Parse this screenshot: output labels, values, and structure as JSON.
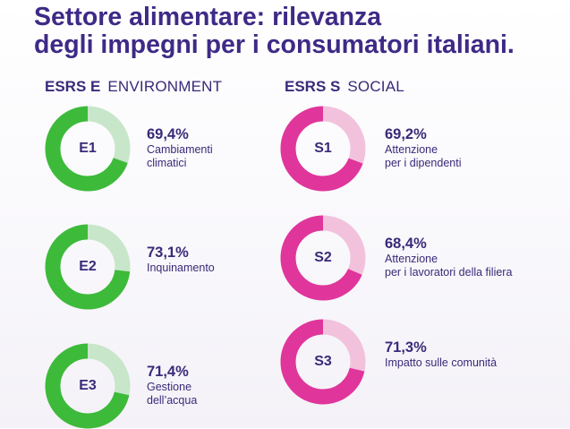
{
  "title": {
    "line1": "Settore alimentare: rilevanza",
    "line2": "degli impegni per i consumatori italiani."
  },
  "sections": {
    "environment": {
      "code": "ESRS E",
      "name": "ENVIRONMENT",
      "ring_color": "#3dba3a",
      "track_color": "#c8e6c9"
    },
    "social": {
      "code": "ESRS S",
      "name": "SOCIAL",
      "ring_color": "#e0359b",
      "track_color": "#f2c2dd"
    }
  },
  "chart_data": {
    "type": "donut",
    "unit": "%",
    "max": 100,
    "items": [
      {
        "code": "E1",
        "group": "environment",
        "value": 69.4,
        "value_label": "69,4%",
        "label_lines": [
          "Cambiamenti",
          "climatici"
        ]
      },
      {
        "code": "E2",
        "group": "environment",
        "value": 73.1,
        "value_label": "73,1%",
        "label_lines": [
          "Inquinamento"
        ]
      },
      {
        "code": "E3",
        "group": "environment",
        "value": 71.4,
        "value_label": "71,4%",
        "label_lines": [
          "Gestione",
          "dell’acqua"
        ]
      },
      {
        "code": "S1",
        "group": "social",
        "value": 69.2,
        "value_label": "69,2%",
        "label_lines": [
          "Attenzione",
          "per i dipendenti"
        ]
      },
      {
        "code": "S2",
        "group": "social",
        "value": 68.4,
        "value_label": "68,4%",
        "label_lines": [
          "Attenzione",
          "per i lavoratori della filiera"
        ]
      },
      {
        "code": "S3",
        "group": "social",
        "value": 71.3,
        "value_label": "71,3%",
        "label_lines": [
          "Impatto sulle comunità"
        ]
      }
    ]
  }
}
